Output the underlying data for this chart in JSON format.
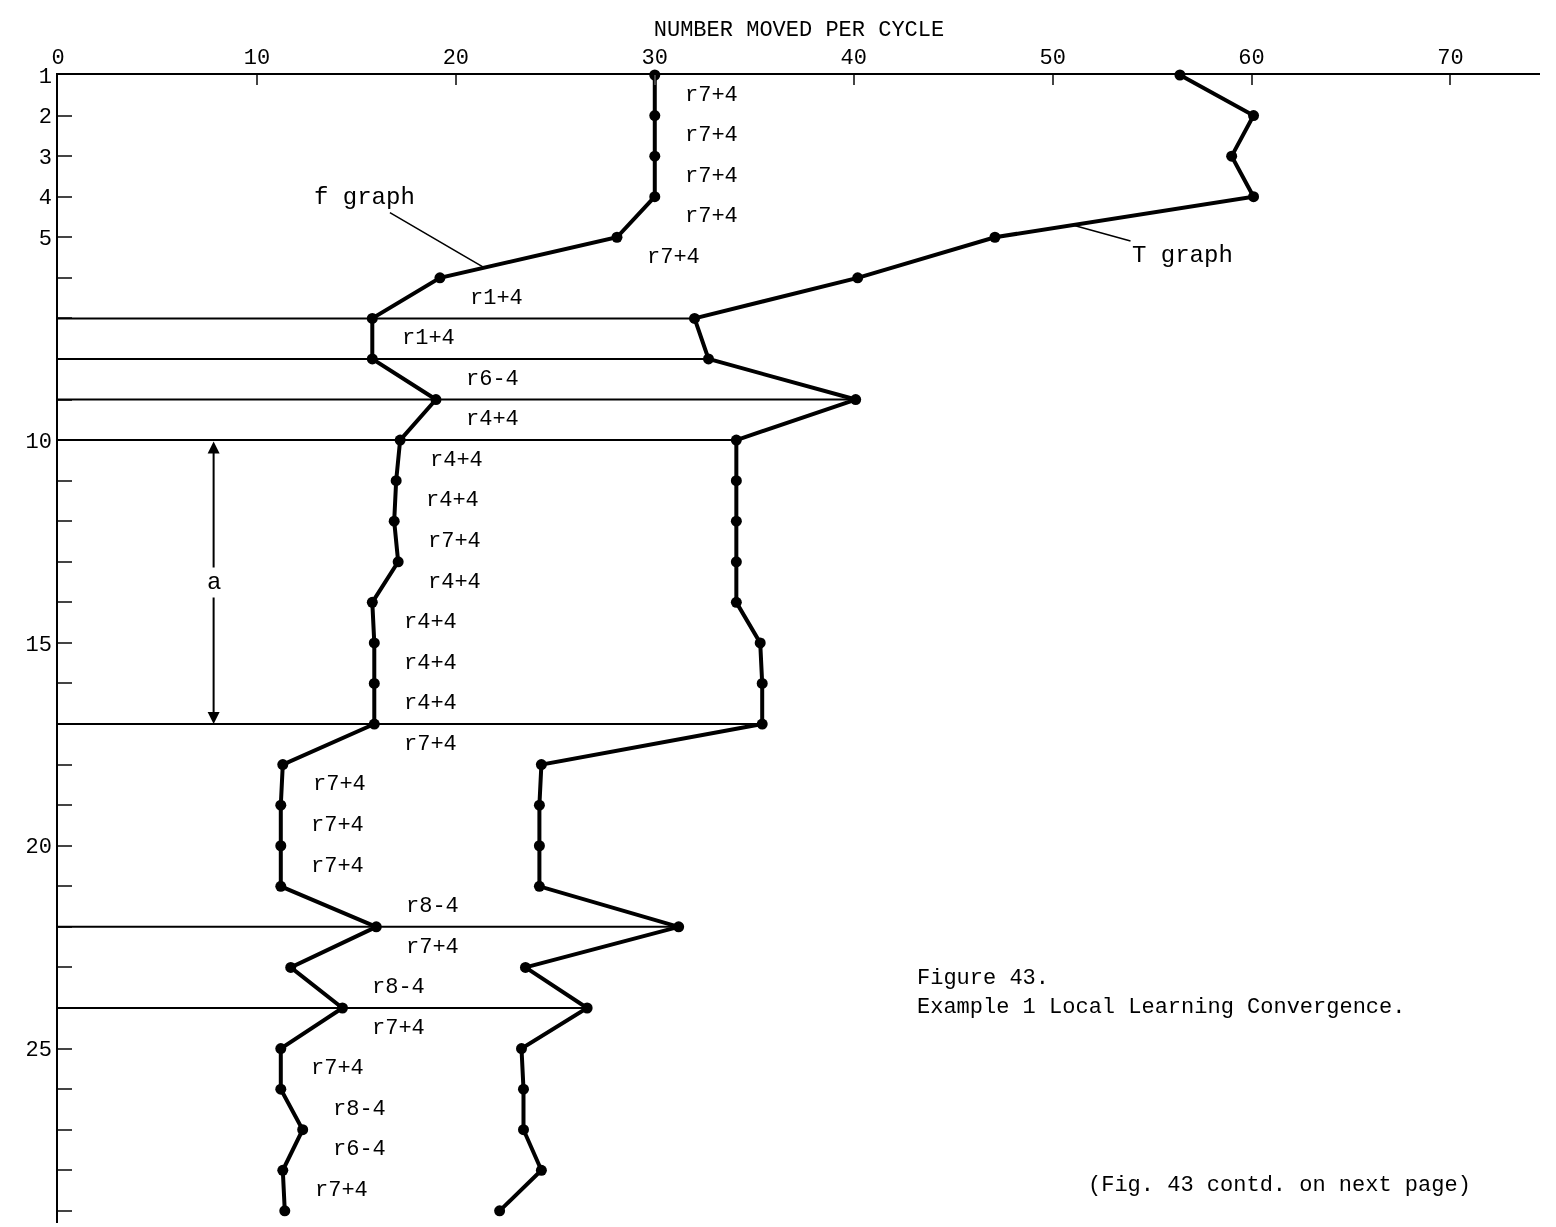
{
  "chart_data": {
    "type": "line",
    "xlabel": "NUMBER MOVED PER CYCLE",
    "series": [
      {
        "name": "f graph",
        "color": "#000000",
        "x": [
          30,
          30,
          30,
          30,
          28.1,
          19.2,
          15.8,
          15.8,
          19.0,
          17.2,
          17.0,
          16.9,
          17.1,
          15.8,
          15.9,
          15.9,
          15.9,
          11.3,
          11.2,
          11.2,
          11.2,
          16.0,
          11.7,
          14.3,
          11.2,
          11.2,
          12.3,
          11.3,
          11.4
        ],
        "values": [
          1,
          2,
          3,
          4,
          5,
          6,
          7,
          8,
          9,
          10,
          11,
          12,
          13,
          14,
          15,
          16,
          17,
          18,
          19,
          20,
          21,
          22,
          23,
          24,
          25,
          26,
          27,
          28,
          29
        ]
      },
      {
        "name": "T graph",
        "color": "#000000",
        "x": [
          56.4,
          60.1,
          59.0,
          60.1,
          47.1,
          40.2,
          32.0,
          32.7,
          40.1,
          34.1,
          34.1,
          34.1,
          34.1,
          34.1,
          35.3,
          35.4,
          35.4,
          24.3,
          24.2,
          24.2,
          24.2,
          31.2,
          23.5,
          26.6,
          23.3,
          23.4,
          23.4,
          24.3,
          22.2
        ],
        "values": [
          1,
          2,
          3,
          4,
          5,
          6,
          7,
          8,
          9,
          10,
          11,
          12,
          13,
          14,
          15,
          16,
          17,
          18,
          19,
          20,
          21,
          22,
          23,
          24,
          25,
          26,
          27,
          28,
          29
        ]
      }
    ],
    "xlim": [
      0,
      74.5
    ],
    "xticks": [
      0,
      10,
      20,
      30,
      40,
      50,
      60,
      70
    ],
    "ylim": [
      29.3,
      1
    ],
    "yticks": [
      1,
      2,
      3,
      4,
      5,
      {
        "value": 6,
        "label": null
      },
      {
        "value": 7,
        "label": null
      },
      {
        "value": 8,
        "label": null
      },
      {
        "value": 9,
        "label": null
      },
      10,
      {
        "value": 11,
        "label": null
      },
      {
        "value": 12,
        "label": null
      },
      {
        "value": 13,
        "label": null
      },
      {
        "value": 14,
        "label": null
      },
      15,
      {
        "value": 16,
        "label": null
      },
      {
        "value": 17,
        "label": null
      },
      {
        "value": 18,
        "label": null
      },
      {
        "value": 19,
        "label": null
      },
      20,
      {
        "value": 21,
        "label": null
      },
      {
        "value": 22,
        "label": null
      },
      {
        "value": 23,
        "label": null
      },
      {
        "value": 24,
        "label": null
      },
      25,
      {
        "value": 26,
        "label": null
      },
      {
        "value": 27,
        "label": null
      },
      {
        "value": 28,
        "label": null
      },
      {
        "value": 29,
        "label": null
      }
    ],
    "ref_lines": [
      {
        "axis": "y",
        "value": 7
      },
      {
        "axis": "y",
        "value": 8
      },
      {
        "axis": "y",
        "value": 9
      },
      {
        "axis": "y",
        "value": 10
      },
      {
        "axis": "y",
        "value": 17
      },
      {
        "axis": "y",
        "value": 22
      },
      {
        "axis": "y",
        "value": 24
      }
    ],
    "marker": "circle",
    "line_style": "solid",
    "legend": false,
    "annotations": [
      "r7+4",
      "r7+4",
      "r7+4",
      "r7+4",
      "r7+4",
      "r1+4",
      "r1+4",
      "r6-4",
      "r4+4",
      "r4+4",
      "r4+4",
      "r7+4",
      "r4+4",
      "r4+4",
      "r4+4",
      "r4+4",
      "r7+4",
      "r7+4",
      "r7+4",
      "r7+4",
      "r8-4",
      "r7+4",
      "r8-4",
      "r7+4",
      "r7+4",
      "r8-4",
      "r6-4",
      "r7+4",
      "a",
      "Figure 43.\nExample 1 Local Learning Convergence.",
      "(Fig. 43 contd. on next page)"
    ]
  }
}
